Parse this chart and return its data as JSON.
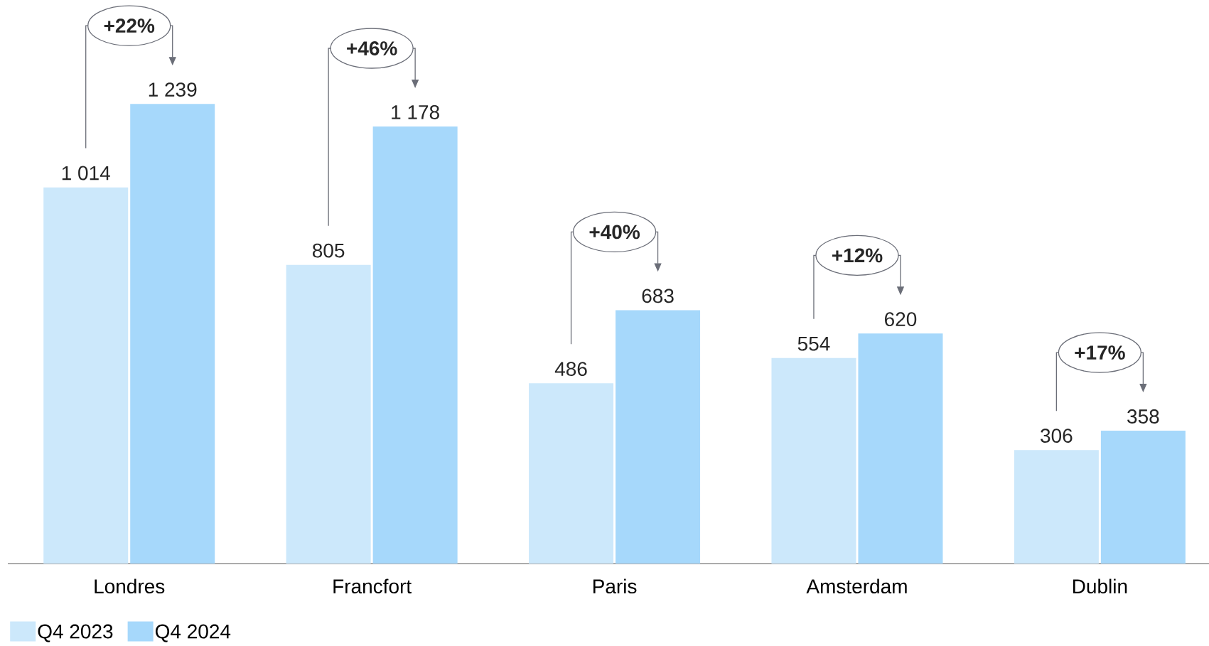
{
  "chart_data": {
    "type": "bar",
    "categories": [
      "Londres",
      "Francfort",
      "Paris",
      "Amsterdam",
      "Dublin"
    ],
    "series": [
      {
        "name": "Q4 2023",
        "color": "#cce8fb",
        "values": [
          1014,
          805,
          486,
          554,
          306
        ],
        "value_labels": [
          "1 014",
          "805",
          "486",
          "554",
          "306"
        ]
      },
      {
        "name": "Q4 2024",
        "color": "#a6d8fb",
        "values": [
          1239,
          1178,
          683,
          620,
          358
        ],
        "value_labels": [
          "1 239",
          "1 178",
          "683",
          "620",
          "358"
        ]
      }
    ],
    "annotations": [
      "+22%",
      "+46%",
      "+40%",
      "+12%",
      "+17%"
    ],
    "legend": "bottom left"
  }
}
